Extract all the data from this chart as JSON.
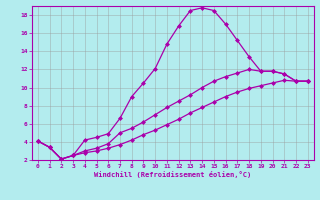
{
  "xlabel": "Windchill (Refroidissement éolien,°C)",
  "bg_color": "#b3ecee",
  "line_color": "#aa00aa",
  "grid_color": "#999999",
  "xlim": [
    -0.5,
    23.5
  ],
  "ylim": [
    2,
    19
  ],
  "xticks": [
    0,
    1,
    2,
    3,
    4,
    5,
    6,
    7,
    8,
    9,
    10,
    11,
    12,
    13,
    14,
    15,
    16,
    17,
    18,
    19,
    20,
    21,
    22,
    23
  ],
  "yticks": [
    2,
    4,
    6,
    8,
    10,
    12,
    14,
    16,
    18
  ],
  "series": [
    {
      "x": [
        0,
        1,
        2,
        3,
        4,
        5,
        6,
        7,
        8,
        9,
        10,
        11,
        12,
        13,
        14,
        15,
        16,
        17,
        18,
        19,
        20,
        21,
        22,
        23
      ],
      "y": [
        4.1,
        3.4,
        2.1,
        2.5,
        4.2,
        4.5,
        4.9,
        6.6,
        9.0,
        10.5,
        12.1,
        14.8,
        16.8,
        18.5,
        18.8,
        18.5,
        17.0,
        15.2,
        13.4,
        11.8,
        11.8,
        11.5,
        10.7,
        10.7
      ]
    },
    {
      "x": [
        0,
        1,
        2,
        3,
        4,
        5,
        6,
        7,
        8,
        9,
        10,
        11,
        12,
        13,
        14,
        15,
        16,
        17,
        18,
        19,
        20,
        21,
        22,
        23
      ],
      "y": [
        4.1,
        3.4,
        2.1,
        2.5,
        3.0,
        3.3,
        3.8,
        5.0,
        5.5,
        6.2,
        7.0,
        7.8,
        8.5,
        9.2,
        10.0,
        10.7,
        11.2,
        11.6,
        12.0,
        11.8,
        11.8,
        11.5,
        10.7,
        10.7
      ]
    },
    {
      "x": [
        0,
        1,
        2,
        3,
        4,
        5,
        6,
        7,
        8,
        9,
        10,
        11,
        12,
        13,
        14,
        15,
        16,
        17,
        18,
        19,
        20,
        21,
        22,
        23
      ],
      "y": [
        4.1,
        3.4,
        2.1,
        2.5,
        2.8,
        3.0,
        3.3,
        3.7,
        4.2,
        4.8,
        5.3,
        5.9,
        6.5,
        7.2,
        7.8,
        8.4,
        9.0,
        9.5,
        9.9,
        10.2,
        10.5,
        10.8,
        10.7,
        10.7
      ]
    }
  ]
}
